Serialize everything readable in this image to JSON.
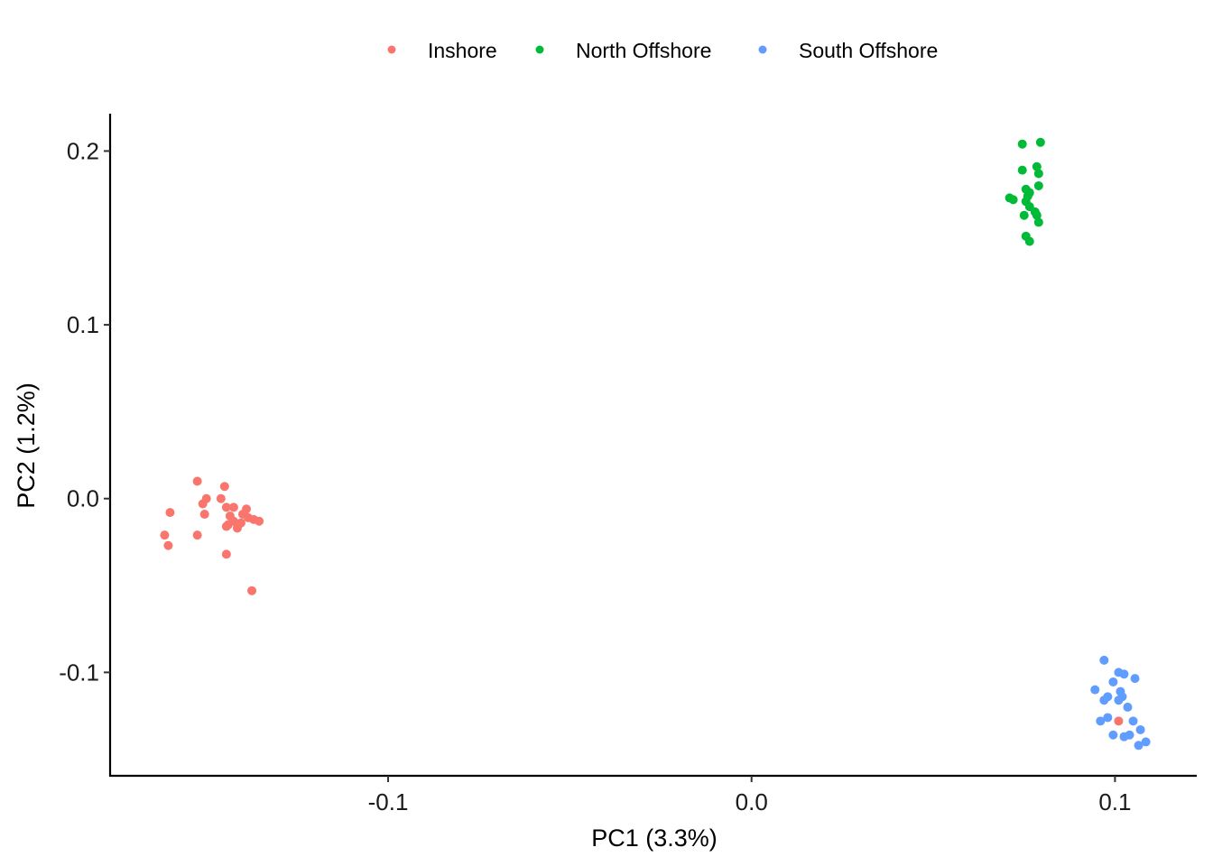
{
  "chart_data": {
    "type": "scatter",
    "title": "",
    "xlabel": "PC1 (3.3%)",
    "ylabel": "PC2 (1.2%)",
    "xlim": [
      -0.1765,
      0.1225
    ],
    "ylim": [
      -0.1595,
      0.2215
    ],
    "xticks": [
      {
        "value": -0.1,
        "label": "-0.1"
      },
      {
        "value": 0.0,
        "label": "0.0"
      },
      {
        "value": 0.1,
        "label": "0.1"
      }
    ],
    "yticks": [
      {
        "value": 0.2,
        "label": "0.2"
      },
      {
        "value": 0.1,
        "label": "0.1"
      },
      {
        "value": 0.0,
        "label": "0.0"
      },
      {
        "value": -0.1,
        "label": "-0.1"
      }
    ],
    "grid": false,
    "legend_position": "top",
    "series": [
      {
        "name": "Inshore",
        "color": "#F8766D",
        "points": [
          [
            -0.1525,
            0.01
          ],
          [
            -0.145,
            0.007
          ],
          [
            -0.15,
            0.0
          ],
          [
            -0.151,
            -0.003
          ],
          [
            -0.146,
            0.0
          ],
          [
            -0.16,
            -0.008
          ],
          [
            -0.1505,
            -0.009
          ],
          [
            -0.1445,
            -0.005
          ],
          [
            -0.1425,
            -0.005
          ],
          [
            -0.139,
            -0.006
          ],
          [
            -0.14,
            -0.009
          ],
          [
            -0.1435,
            -0.01
          ],
          [
            -0.1385,
            -0.011
          ],
          [
            -0.137,
            -0.012
          ],
          [
            -0.1355,
            -0.013
          ],
          [
            -0.1425,
            -0.013
          ],
          [
            -0.1405,
            -0.014
          ],
          [
            -0.144,
            -0.015
          ],
          [
            -0.1445,
            -0.016
          ],
          [
            -0.1415,
            -0.017
          ],
          [
            -0.1525,
            -0.021
          ],
          [
            -0.1615,
            -0.021
          ],
          [
            -0.1605,
            -0.027
          ],
          [
            -0.1445,
            -0.032
          ],
          [
            -0.1375,
            -0.053
          ],
          [
            0.101,
            -0.128
          ]
        ]
      },
      {
        "name": "North Offshore",
        "color": "#00BA38",
        "points": [
          [
            0.0745,
            0.204
          ],
          [
            0.0795,
            0.205
          ],
          [
            0.0785,
            0.191
          ],
          [
            0.0745,
            0.189
          ],
          [
            0.079,
            0.187
          ],
          [
            0.079,
            0.18
          ],
          [
            0.0755,
            0.178
          ],
          [
            0.0765,
            0.176
          ],
          [
            0.076,
            0.174
          ],
          [
            0.071,
            0.173
          ],
          [
            0.072,
            0.172
          ],
          [
            0.0755,
            0.171
          ],
          [
            0.0765,
            0.168
          ],
          [
            0.078,
            0.165
          ],
          [
            0.0785,
            0.163
          ],
          [
            0.075,
            0.163
          ],
          [
            0.079,
            0.159
          ],
          [
            0.0755,
            0.151
          ],
          [
            0.0765,
            0.148
          ]
        ]
      },
      {
        "name": "South Offshore",
        "color": "#619CFF",
        "points": [
          [
            0.097,
            -0.093
          ],
          [
            0.101,
            -0.1
          ],
          [
            0.1025,
            -0.101
          ],
          [
            0.1055,
            -0.1035
          ],
          [
            0.0995,
            -0.1055
          ],
          [
            0.0945,
            -0.11
          ],
          [
            0.1015,
            -0.111
          ],
          [
            0.098,
            -0.114
          ],
          [
            0.097,
            -0.116
          ],
          [
            0.102,
            -0.114
          ],
          [
            0.101,
            -0.116
          ],
          [
            0.1035,
            -0.12
          ],
          [
            0.098,
            -0.126
          ],
          [
            0.096,
            -0.128
          ],
          [
            0.105,
            -0.128
          ],
          [
            0.107,
            -0.133
          ],
          [
            0.0995,
            -0.136
          ],
          [
            0.1025,
            -0.137
          ],
          [
            0.104,
            -0.136
          ],
          [
            0.1085,
            -0.14
          ],
          [
            0.1065,
            -0.142
          ]
        ]
      }
    ]
  }
}
